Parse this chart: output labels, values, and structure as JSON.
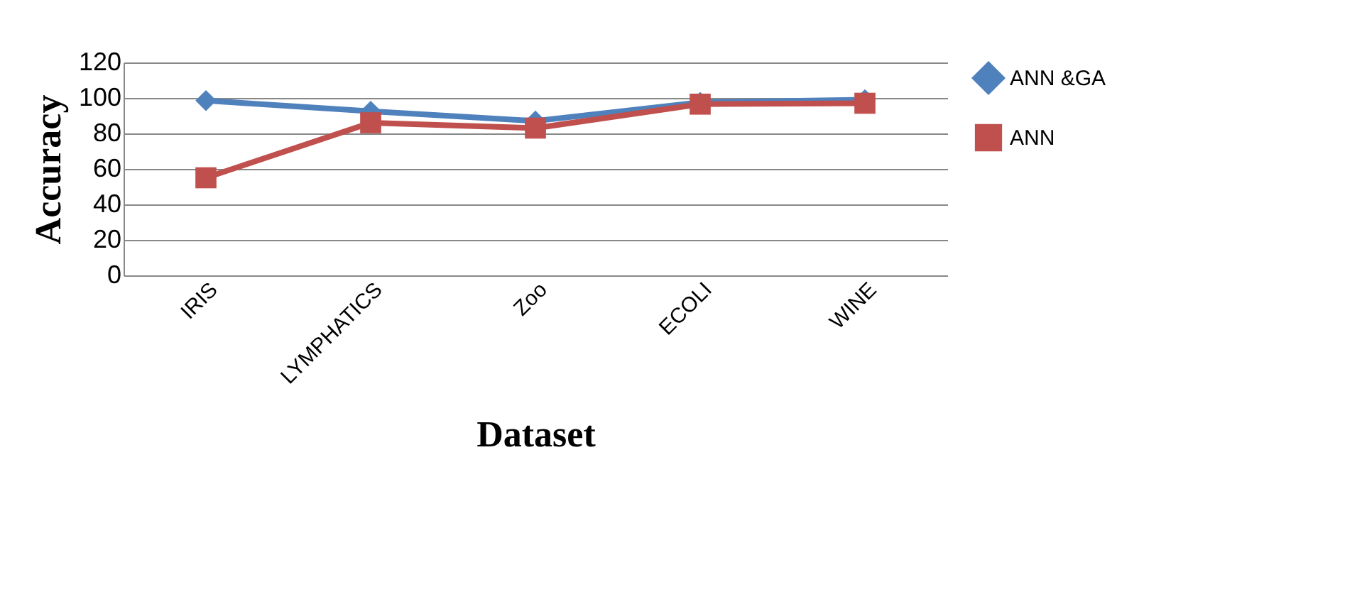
{
  "chart_data": {
    "type": "line",
    "xlabel": "Dataset",
    "ylabel": "Accuracy",
    "categories": [
      "IRIS",
      "LYMPHATICS",
      "Zoo",
      "ECOLI",
      "WINE"
    ],
    "series": [
      {
        "name": "ANN &GA",
        "color": "#4f81bd",
        "marker": "diamond",
        "values": [
          98.5,
          92.5,
          87,
          97.5,
          99
        ]
      },
      {
        "name": "ANN",
        "color": "#c0504d",
        "marker": "square",
        "values": [
          55,
          86,
          83,
          96.5,
          97
        ]
      }
    ],
    "ylim": [
      0,
      120
    ],
    "yticks": [
      0,
      20,
      40,
      60,
      80,
      100,
      120
    ],
    "grid": "y",
    "legend": "right"
  }
}
